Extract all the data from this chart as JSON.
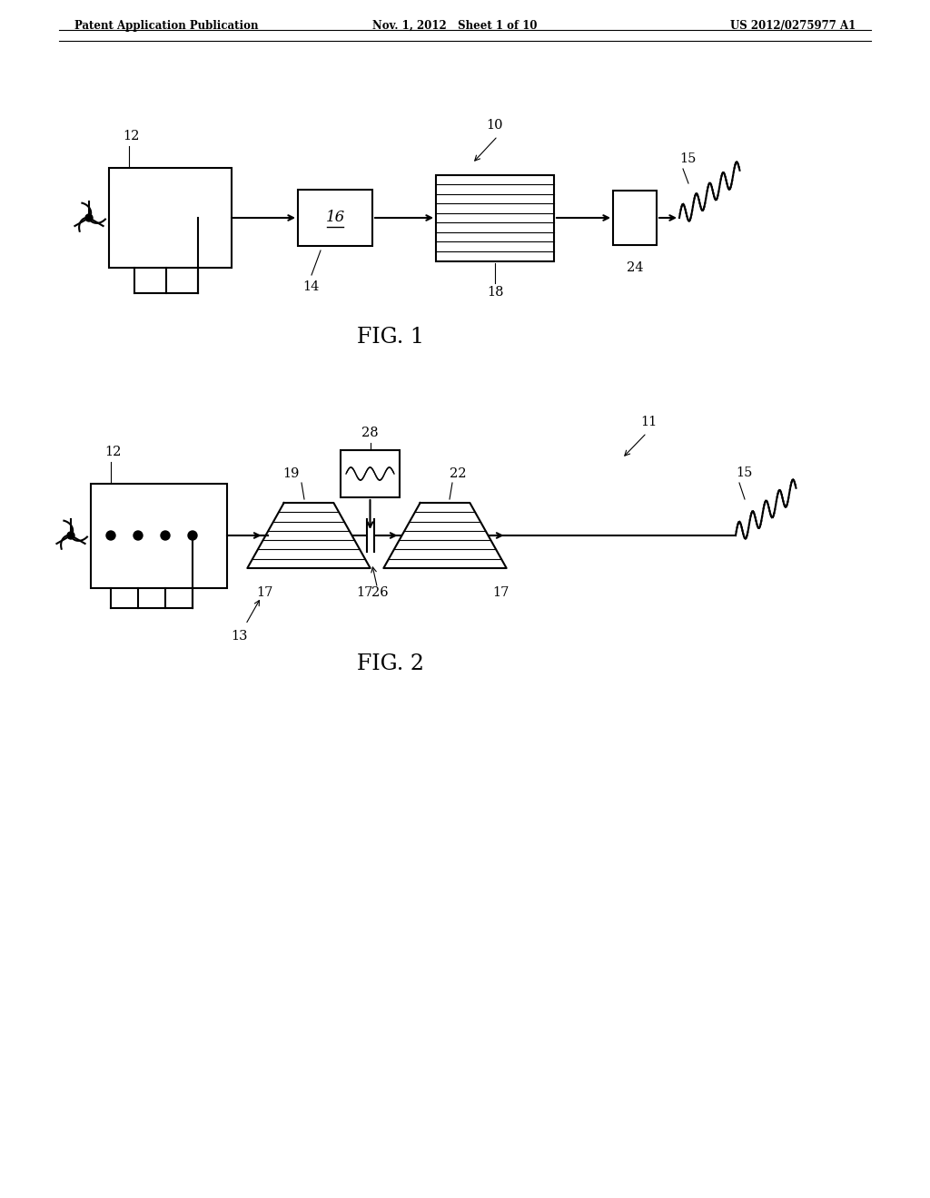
{
  "bg_color": "#ffffff",
  "header_left": "Patent Application Publication",
  "header_mid": "Nov. 1, 2012   Sheet 1 of 10",
  "header_right": "US 2012/0275977 A1",
  "fig1_label": "FIG. 1",
  "fig2_label": "FIG. 2",
  "line_color": "#000000",
  "lw": 1.5
}
